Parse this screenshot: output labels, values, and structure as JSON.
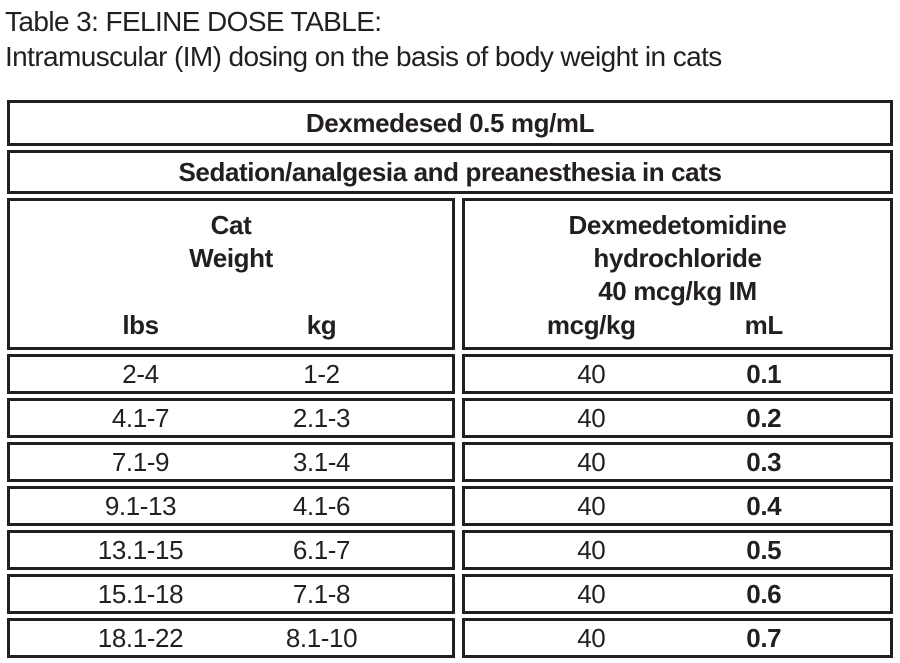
{
  "page": {
    "title_line1": "Table 3: FELINE DOSE TABLE:",
    "title_line2": "Intramuscular (IM) dosing on the basis of body weight in cats"
  },
  "table": {
    "banner1": "Dexmedesed 0.5 mg/mL",
    "banner2": "Sedation/analgesia and preanesthesia in cats",
    "left_group": {
      "label_lines": [
        "Cat",
        "Weight"
      ],
      "columns": [
        "lbs",
        "kg"
      ]
    },
    "right_group": {
      "label_lines": [
        "Dexmedetomidine",
        "hydrochloride",
        "40 mcg/kg IM"
      ],
      "columns": [
        "mcg/kg",
        "mL"
      ]
    },
    "rows": [
      {
        "lbs": "2-4",
        "kg": "1-2",
        "mcg_kg": "40",
        "ml": "0.1"
      },
      {
        "lbs": "4.1-7",
        "kg": "2.1-3",
        "mcg_kg": "40",
        "ml": "0.2"
      },
      {
        "lbs": "7.1-9",
        "kg": "3.1-4",
        "mcg_kg": "40",
        "ml": "0.3"
      },
      {
        "lbs": "9.1-13",
        "kg": "4.1-6",
        "mcg_kg": "40",
        "ml": "0.4"
      },
      {
        "lbs": "13.1-15",
        "kg": "6.1-7",
        "mcg_kg": "40",
        "ml": "0.5"
      },
      {
        "lbs": "15.1-18",
        "kg": "7.1-8",
        "mcg_kg": "40",
        "ml": "0.6"
      },
      {
        "lbs": "18.1-22",
        "kg": "8.1-10",
        "mcg_kg": "40",
        "ml": "0.7"
      }
    ],
    "colors": {
      "text": "#231f20",
      "border": "#231f20",
      "background": "#ffffff"
    }
  }
}
